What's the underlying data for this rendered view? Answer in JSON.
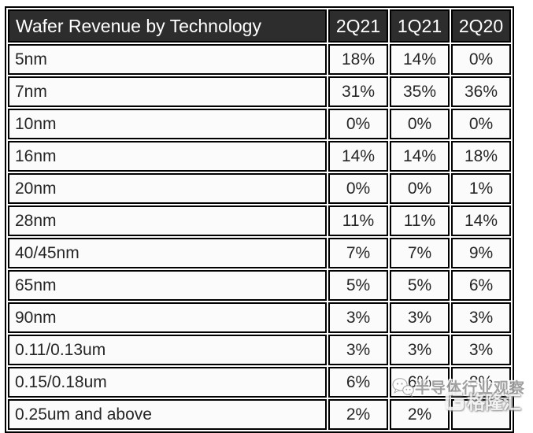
{
  "chart_data": {
    "type": "table",
    "title": "Wafer Revenue by Technology",
    "columns": [
      "Wafer Revenue by Technology",
      "2Q21",
      "1Q21",
      "2Q20"
    ],
    "rows": [
      {
        "label": "5nm",
        "values": [
          "18%",
          "14%",
          "0%"
        ]
      },
      {
        "label": "7nm",
        "values": [
          "31%",
          "35%",
          "36%"
        ]
      },
      {
        "label": "10nm",
        "values": [
          "0%",
          "0%",
          "0%"
        ]
      },
      {
        "label": "16nm",
        "values": [
          "14%",
          "14%",
          "18%"
        ]
      },
      {
        "label": "20nm",
        "values": [
          "0%",
          "0%",
          "1%"
        ]
      },
      {
        "label": "28nm",
        "values": [
          "11%",
          "11%",
          "14%"
        ]
      },
      {
        "label": "40/45nm",
        "values": [
          "7%",
          "7%",
          "9%"
        ]
      },
      {
        "label": "65nm",
        "values": [
          "5%",
          "5%",
          "6%"
        ]
      },
      {
        "label": "90nm",
        "values": [
          "3%",
          "3%",
          "3%"
        ]
      },
      {
        "label": "0.11/0.13um",
        "values": [
          "3%",
          "3%",
          "3%"
        ]
      },
      {
        "label": "0.15/0.18um",
        "values": [
          "6%",
          "6%",
          "8%"
        ]
      },
      {
        "label": "0.25um and above",
        "values": [
          "2%",
          "2%",
          ""
        ]
      }
    ],
    "layout": {
      "header_position": "top",
      "label_alignment": "left",
      "value_alignment": "center",
      "note": "2Q20 value of last row obscured by watermark"
    }
  },
  "watermarks": {
    "observer_text": "半导体行业观察",
    "gelonghui_text": "格隆汇"
  },
  "colors": {
    "header_bg": "#2d2d2d",
    "header_text": "#ffffff",
    "border": "#000000",
    "cell_bg": "#fbfbfb",
    "cell_text": "#262626",
    "page_bg": "#ffffff",
    "watermark_gray": "#9a9a9a"
  }
}
